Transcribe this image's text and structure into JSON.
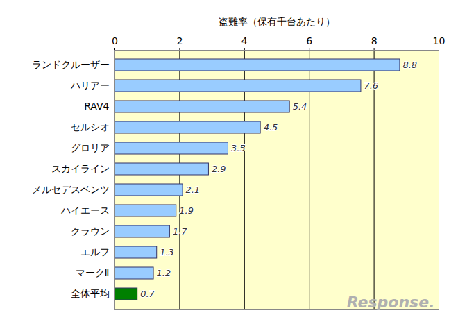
{
  "chart_data": {
    "type": "bar",
    "orientation": "horizontal",
    "xlabel": "盗難率（保有千台あたり）",
    "categories": [
      "ランドクルーザー",
      "ハリアー",
      "RAV4",
      "セルシオ",
      "グロリア",
      "スカイライン",
      "メルセデスベンツ",
      "ハイエース",
      "クラウン",
      "エルフ",
      "マークⅡ",
      "全体平均"
    ],
    "values": [
      8.8,
      7.6,
      5.4,
      4.5,
      3.5,
      2.9,
      2.1,
      1.9,
      1.7,
      1.3,
      1.2,
      0.7
    ],
    "colors": [
      "#99ccff",
      "#99ccff",
      "#99ccff",
      "#99ccff",
      "#99ccff",
      "#99ccff",
      "#99ccff",
      "#99ccff",
      "#99ccff",
      "#99ccff",
      "#99ccff",
      "#008000"
    ],
    "xlim": [
      0,
      10
    ],
    "xticks": [
      0,
      2,
      4,
      6,
      8,
      10
    ],
    "grid": true,
    "data_labels": true,
    "annotations": [
      "Response."
    ]
  }
}
